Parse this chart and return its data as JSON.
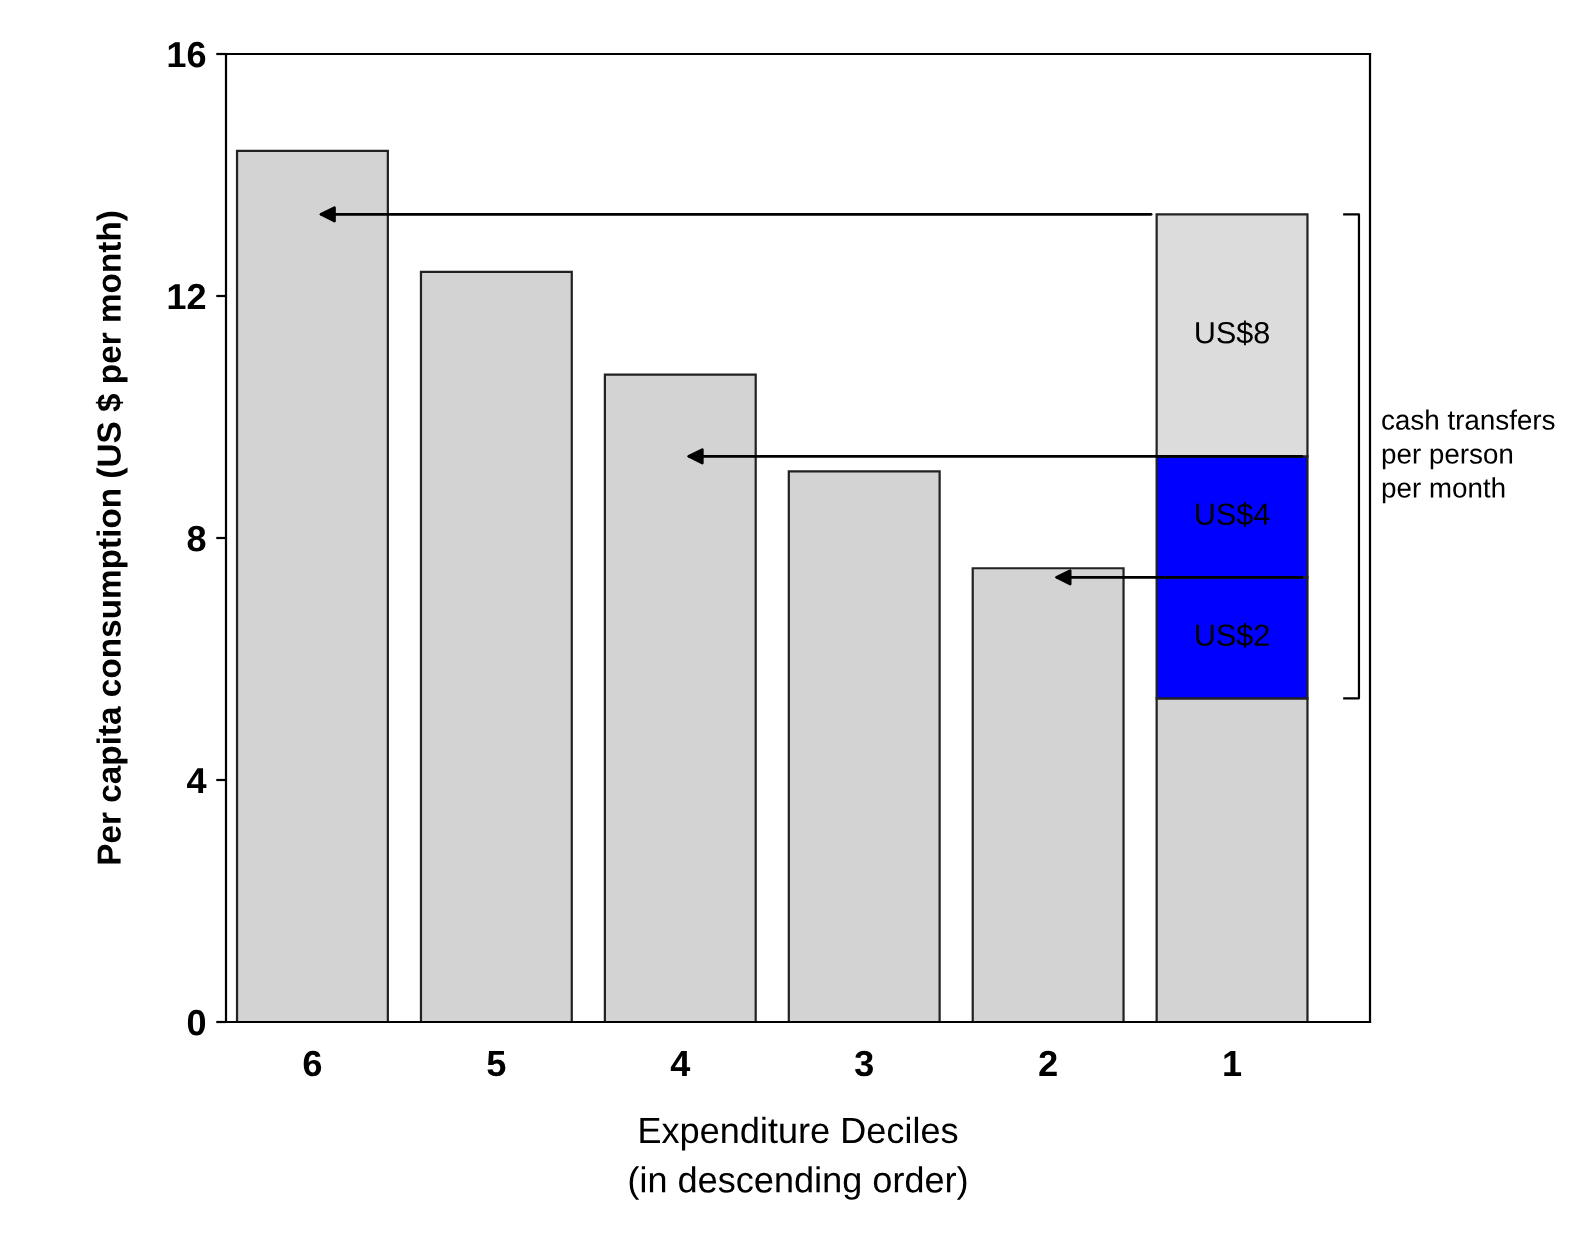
{
  "chart_data": {
    "type": "bar",
    "stacked": true,
    "categories": [
      "6",
      "5",
      "4",
      "3",
      "2",
      "1"
    ],
    "xlabel": "Expenditure Deciles\n(in descending order)",
    "ylabel": "Per capita consumption (US $ per month)",
    "ylim": [
      0,
      16
    ],
    "yticks": [
      0,
      4,
      8,
      12,
      16
    ],
    "grid": false,
    "legend": false,
    "series": [
      {
        "color": "#d3d3d3",
        "values": [
          14.4,
          12.4,
          10.7,
          9.1,
          7.5,
          5.35
        ]
      },
      {
        "color": "#0000ff",
        "values": [
          null,
          null,
          null,
          null,
          null,
          2
        ],
        "value_labels": [
          null,
          null,
          null,
          null,
          null,
          "US$2"
        ]
      },
      {
        "color": "#0000ff",
        "values": [
          null,
          null,
          null,
          null,
          null,
          2
        ],
        "value_labels": [
          null,
          null,
          null,
          null,
          null,
          "US$4"
        ]
      },
      {
        "color": "#dcdcdc",
        "values": [
          null,
          null,
          null,
          null,
          null,
          4
        ],
        "value_labels": [
          null,
          null,
          null,
          null,
          null,
          "US$8"
        ]
      }
    ],
    "annotations": [
      "cash transfers\nper person\nper month"
    ]
  }
}
